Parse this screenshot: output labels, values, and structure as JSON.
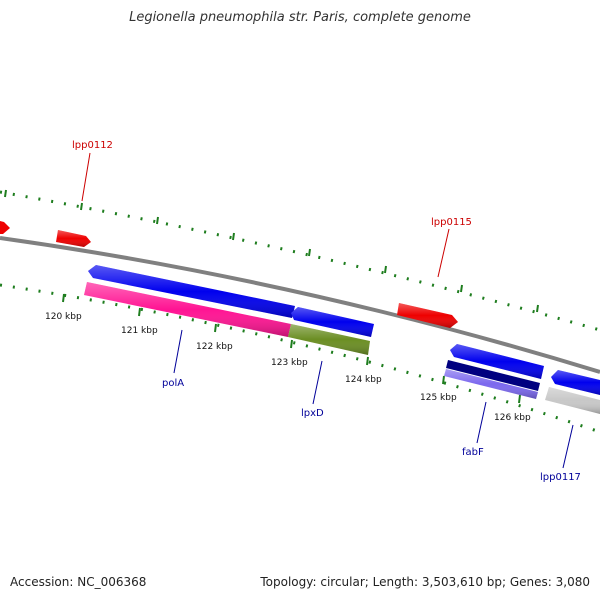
{
  "title": "Legionella pneumophila str. Paris, complete genome",
  "footer": {
    "accession": "Accession: NC_006368",
    "topology": "Topology: circular; Length: 3,503,610 bp; Genes: 3,080"
  },
  "colors": {
    "backbone": "#808080",
    "tick_green": "#1e7d1e",
    "gene_red": "#ee0000",
    "gene_blue": "#0000ee",
    "gene_pink": "#ff1493",
    "gene_olive": "#6b8e23",
    "gene_navy": "#000080",
    "gene_slate": "#7b68ee",
    "gene_grey": "#c8c8c8",
    "label_red": "#cc0000",
    "label_blue": "#000099"
  },
  "scale_labels": [
    {
      "id": "120kbp",
      "text": "120 kbp"
    },
    {
      "id": "121kbp",
      "text": "121 kbp"
    },
    {
      "id": "122kbp",
      "text": "122 kbp"
    },
    {
      "id": "123kbp",
      "text": "123 kbp"
    },
    {
      "id": "124kbp",
      "text": "124 kbp"
    },
    {
      "id": "125kbp",
      "text": "125 kbp"
    },
    {
      "id": "126kbp",
      "text": "126 kbp"
    }
  ],
  "gene_labels": [
    {
      "id": "lpp0112",
      "text": "lpp0112"
    },
    {
      "id": "lpp0115",
      "text": "lpp0115"
    },
    {
      "id": "polA",
      "text": "polA"
    },
    {
      "id": "lpxD",
      "text": "lpxD"
    },
    {
      "id": "fabF",
      "text": "fabF"
    },
    {
      "id": "lpp0117",
      "text": "lpp0117"
    }
  ]
}
